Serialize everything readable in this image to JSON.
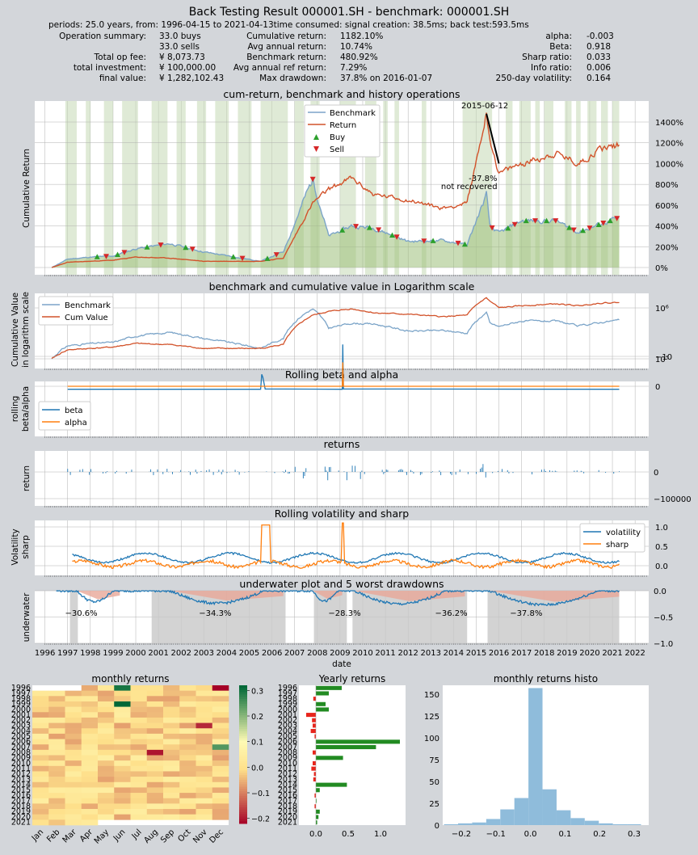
{
  "title": "Back Testing Result 000001.SH - benchmark: 000001.SH",
  "subtitle": "periods: 25.0 years, from: 1996-04-15 to 2021-04-13time consumed:   signal creation: 38.5ms;  back test:593.5ms",
  "summary": {
    "col1": [
      {
        "label": "Operation summary:",
        "value": "33.0     buys"
      },
      {
        "label": "",
        "value": "33.0     sells"
      },
      {
        "label": "Total op fee:",
        "value": "¥      8,073.73"
      },
      {
        "label": "total investment:",
        "value": "¥   100,000.00"
      },
      {
        "label": "final value:",
        "value": "¥ 1,282,102.43"
      }
    ],
    "col2": [
      {
        "label": "Cumulative return:",
        "value": "1182.10%"
      },
      {
        "label": "Avg annual return:",
        "value": "10.74%"
      },
      {
        "label": "Benchmark return:",
        "value": "480.92%"
      },
      {
        "label": "Avg annual ref return:",
        "value": "7.29%"
      },
      {
        "label": "Max drawdown:",
        "value": "37.8% on 2016-01-07"
      }
    ],
    "col3": [
      {
        "label": "alpha:",
        "value": "-0.003"
      },
      {
        "label": "Beta:",
        "value": "0.918"
      },
      {
        "label": "Sharp ratio:",
        "value": "0.033"
      },
      {
        "label": "Info ratio:",
        "value": "0.006"
      },
      {
        "label": "250-day volatility:",
        "value": "0.164"
      }
    ]
  },
  "panels": {
    "cum": {
      "title": "cum-return, benchmark and history operations",
      "ylabel": "Cumulative Return",
      "yticks": [
        "0%",
        "200%",
        "400%",
        "600%",
        "800%",
        "1000%",
        "1200%",
        "1400%"
      ],
      "legend": [
        "Benchmark",
        "Return",
        "Buy",
        "Sell"
      ],
      "annot_peak": "2015-06-12",
      "annot_dd": "-37.8%",
      "annot_dd2": "not recovered"
    },
    "log": {
      "title": "benchmark and cumulative value in Logarithm scale",
      "ylabel1": "Cumulative Value",
      "ylabel2": "in logarithm scale",
      "yticks": [
        "10⁵",
        "10⁶"
      ],
      "legend": [
        "Benchmark",
        "Cum Value"
      ]
    },
    "beta": {
      "title": "Rolling beta and alpha",
      "ylabel1": "rolling",
      "ylabel2": "beta/alpha",
      "yticks": [
        "0",
        "−10"
      ],
      "legend": [
        "beta",
        "alpha"
      ]
    },
    "ret": {
      "title": "returns",
      "ylabel": "return",
      "yticks": [
        "0",
        "−100000"
      ]
    },
    "vol": {
      "title": "Rolling volatility and sharp",
      "ylabel1": "Volatility",
      "ylabel2": "sharp",
      "yticks": [
        "0.0",
        "0.5",
        "1.0"
      ],
      "legend": [
        "volatility",
        "sharp"
      ]
    },
    "uw": {
      "title": "underwater plot and 5 worst drawdowns",
      "ylabel": "underwater",
      "yticks": [
        "0.0",
        "−0.5",
        "−1.0"
      ],
      "xlabel": "date",
      "dd_labels": [
        "−30.6%",
        "−34.3%",
        "−28.3%",
        "−36.2%",
        "−37.8%"
      ]
    },
    "xyears": [
      "1996",
      "1997",
      "1998",
      "1999",
      "2000",
      "2001",
      "2002",
      "2003",
      "2004",
      "2005",
      "2006",
      "2007",
      "2008",
      "2009",
      "2010",
      "2011",
      "2012",
      "2013",
      "2014",
      "2015",
      "2016",
      "2017",
      "2018",
      "2019",
      "2020",
      "2021",
      "2022"
    ]
  },
  "bottom": {
    "heat": {
      "title": "monthly returns",
      "years": [
        "1996",
        "1997",
        "1998",
        "1999",
        "2000",
        "2001",
        "2002",
        "2003",
        "2004",
        "2005",
        "2006",
        "2007",
        "2008",
        "2009",
        "2010",
        "2011",
        "2012",
        "2013",
        "2014",
        "2015",
        "2016",
        "2017",
        "2018",
        "2019",
        "2020",
        "2021"
      ],
      "months": [
        "Jan",
        "Feb",
        "Mar",
        "Apr",
        "May",
        "Jun",
        "Jul",
        "Aug",
        "Sep",
        "Oct",
        "Nov",
        "Dec"
      ],
      "cbar_ticks": [
        "0.3",
        "0.2",
        "0.1",
        "0.0",
        "−0.1",
        "−0.2"
      ]
    },
    "yearly": {
      "title": "Yearly returns",
      "xticks": [
        "0.0",
        "0.5",
        "1.0"
      ]
    },
    "histo": {
      "title": "monthly returns histo",
      "yticks": [
        "0",
        "25",
        "50",
        "75",
        "100",
        "125",
        "150"
      ],
      "xticks": [
        "−0.2",
        "−0.1",
        "0.0",
        "0.1",
        "0.2",
        "0.3"
      ]
    }
  },
  "colors": {
    "benchmark": "#7ba4c8",
    "return": "#d2522a",
    "buy": "#2ca02c",
    "sell": "#d62728",
    "beta": "#1f77b4",
    "alpha": "#ff7f0e",
    "hold": "#c5d9b4",
    "uwfill": "#e8a898",
    "ddgray": "#c8c8c8"
  },
  "chart_data": [
    {
      "type": "line",
      "title": "cum-return, benchmark and history operations",
      "ylabel": "Cumulative Return",
      "x": [
        1996.3,
        1997.0,
        1998.0,
        1999.0,
        2000.0,
        2001.5,
        2003.0,
        2005.5,
        2006.5,
        2007.5,
        2007.8,
        2008.5,
        2009.5,
        2010.5,
        2012.0,
        2013.5,
        2014.6,
        2015.45,
        2015.6,
        2016.0,
        2017.0,
        2018.5,
        2019.5,
        2020.5,
        2021.3
      ],
      "series": [
        {
          "name": "Benchmark",
          "values": [
            0,
            80,
            100,
            110,
            180,
            230,
            150,
            60,
            150,
            700,
            850,
            300,
            400,
            380,
            250,
            260,
            220,
            700,
            400,
            330,
            450,
            450,
            340,
            420,
            480
          ]
        },
        {
          "name": "Return",
          "values": [
            0,
            50,
            60,
            70,
            100,
            90,
            60,
            60,
            90,
            500,
            620,
            750,
            860,
            700,
            650,
            570,
            620,
            1480,
            1250,
            900,
            1000,
            1100,
            1000,
            1150,
            1180
          ]
        }
      ],
      "ylim": [
        -50,
        1600
      ]
    },
    {
      "type": "bar",
      "title": "Yearly returns",
      "categories": [
        "1996",
        "1997",
        "1998",
        "1999",
        "2000",
        "2001",
        "2002",
        "2003",
        "2004",
        "2005",
        "2006",
        "2007",
        "2008",
        "2009",
        "2010",
        "2011",
        "2012",
        "2013",
        "2014",
        "2015",
        "2016",
        "2017",
        "2018",
        "2019",
        "2020",
        "2021"
      ],
      "values": [
        0.4,
        0.2,
        -0.04,
        0.15,
        0.2,
        -0.15,
        -0.06,
        -0.05,
        -0.08,
        -0.02,
        1.3,
        0.93,
        -0.05,
        0.42,
        -0.05,
        -0.07,
        -0.03,
        -0.04,
        0.48,
        0.06,
        -0.02,
        0.01,
        -0.02,
        0.06,
        0.04,
        0.02
      ]
    },
    {
      "type": "bar",
      "title": "monthly returns histo",
      "categories": [
        "-0.23",
        "-0.19",
        "-0.14",
        "-0.10",
        "-0.06",
        "-0.02",
        "0.02",
        "0.06",
        "0.10",
        "0.14",
        "0.19",
        "0.23",
        "0.27",
        "0.31"
      ],
      "values": [
        1,
        2,
        3,
        7,
        18,
        31,
        157,
        41,
        17,
        8,
        5,
        2,
        1,
        1
      ],
      "ylim": [
        0,
        165
      ]
    }
  ]
}
